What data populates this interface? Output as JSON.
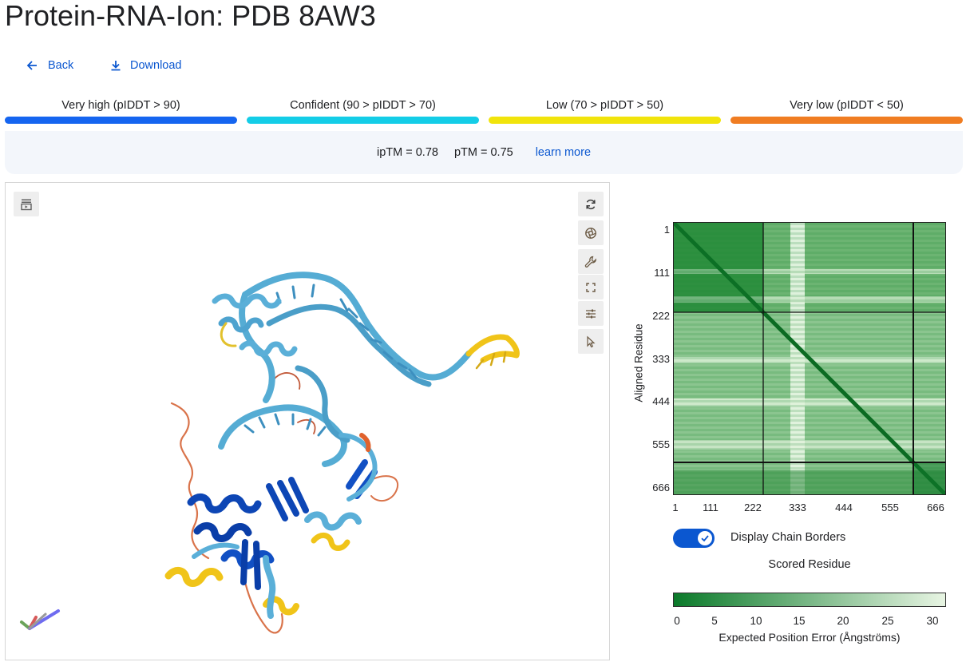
{
  "page": {
    "title": "Protein-RNA-Ion: PDB 8AW3",
    "back_label": "Back",
    "download_label": "Download"
  },
  "legend": [
    {
      "label": "Very high (pIDDT > 90)",
      "color": "#1565f0"
    },
    {
      "label": "Confident (90 > pIDDT > 70)",
      "color": "#14cde7"
    },
    {
      "label": "Low (70 > pIDDT > 50)",
      "color": "#f1e40b"
    },
    {
      "label": "Very low (pIDDT < 50)",
      "color": "#f07d22"
    }
  ],
  "metrics": {
    "iptm": "ipTM = 0.78",
    "ptm": "pTM = 0.75",
    "learn_more": "learn more"
  },
  "viewer": {
    "toolbar": [
      "animation-icon",
      "spin-icon",
      "screenshot-icon",
      "wrench-icon",
      "fullscreen-icon",
      "settings-icon",
      "select-icon"
    ]
  },
  "pae": {
    "y_label": "Aligned Residue",
    "x_label": "Scored Residue",
    "ticks": [
      "1",
      "111",
      "222",
      "333",
      "444",
      "555",
      "666"
    ],
    "chain_borders_label": "Display Chain Borders",
    "chain_borders_enabled": true,
    "colorbar_ticks": [
      "0",
      "5",
      "10",
      "15",
      "20",
      "25",
      "30"
    ],
    "colorbar_label": "Expected Position Error (Ångströms)",
    "color_low": "#0b7a2a",
    "color_high": "#e8f5e3"
  }
}
